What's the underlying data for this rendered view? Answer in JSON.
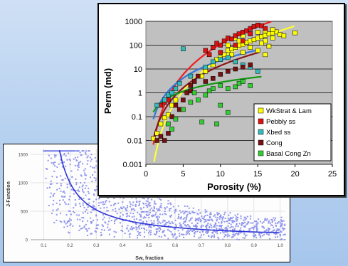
{
  "chart_data": [
    {
      "type": "scatter",
      "title": "",
      "xlabel": "Sw, fraction",
      "ylabel": "J-Function",
      "xlim": [
        0.05,
        1.02
      ],
      "ylim": [
        0,
        1600
      ],
      "xticks": [
        "0.1",
        "0.2",
        "0.3",
        "0.4",
        "0.5",
        "0.6",
        "0.7",
        "0.8",
        "0.9",
        "1.0"
      ],
      "yticks": [
        "0",
        "500",
        "1000",
        "1500"
      ],
      "point_color": "#8f95ec",
      "curve_color": "#2e35d6",
      "grid": true,
      "trend": {
        "a": 110,
        "s0": 0.09
      },
      "points": [
        [
          0.12,
          1480
        ],
        [
          0.13,
          1350
        ],
        [
          0.14,
          1200
        ],
        [
          0.15,
          1100
        ],
        [
          0.13,
          980
        ],
        [
          0.16,
          900
        ],
        [
          0.18,
          820
        ],
        [
          0.2,
          760
        ],
        [
          0.22,
          700
        ],
        [
          0.25,
          640
        ],
        [
          0.12,
          600
        ],
        [
          0.15,
          520
        ],
        [
          0.2,
          500
        ],
        [
          0.28,
          480
        ],
        [
          0.3,
          420
        ],
        [
          0.35,
          380
        ],
        [
          0.4,
          340
        ],
        [
          0.45,
          300
        ],
        [
          0.5,
          260
        ],
        [
          0.55,
          240
        ],
        [
          0.6,
          210
        ],
        [
          0.65,
          190
        ],
        [
          0.7,
          170
        ],
        [
          0.75,
          150
        ],
        [
          0.8,
          140
        ],
        [
          0.85,
          120
        ],
        [
          0.9,
          110
        ],
        [
          0.95,
          100
        ],
        [
          1.0,
          90
        ],
        [
          0.17,
          1050
        ],
        [
          0.19,
          920
        ],
        [
          0.23,
          860
        ],
        [
          0.26,
          780
        ],
        [
          0.33,
          560
        ],
        [
          0.38,
          460
        ],
        [
          0.42,
          420
        ],
        [
          0.48,
          380
        ],
        [
          0.52,
          330
        ],
        [
          0.58,
          290
        ],
        [
          0.62,
          260
        ],
        [
          0.68,
          230
        ],
        [
          0.72,
          200
        ],
        [
          0.78,
          180
        ],
        [
          0.82,
          160
        ],
        [
          0.88,
          150
        ],
        [
          0.92,
          130
        ],
        [
          0.98,
          120
        ],
        [
          0.14,
          300
        ],
        [
          0.2,
          250
        ],
        [
          0.3,
          200
        ],
        [
          0.4,
          150
        ],
        [
          0.5,
          120
        ],
        [
          0.6,
          100
        ],
        [
          0.7,
          80
        ],
        [
          0.8,
          60
        ],
        [
          0.9,
          50
        ],
        [
          0.11,
          1250
        ],
        [
          0.24,
          1000
        ],
        [
          0.27,
          900
        ],
        [
          0.31,
          720
        ]
      ]
    },
    {
      "type": "scatter",
      "title": "",
      "xlabel": "Porosity (%)",
      "ylabel": "Perm (md)",
      "xlim": [
        0,
        25
      ],
      "ylim": [
        0.001,
        1000
      ],
      "yscale": "log",
      "xticks": [
        "0",
        "5",
        "10",
        "15",
        "20",
        "25"
      ],
      "yticks": [
        "0.001",
        "0.01",
        "0.1",
        "1",
        "10",
        "100",
        "1000"
      ],
      "plot_background": "#c0c0c0",
      "grid": true,
      "legend_position": "bottom-right",
      "series": [
        {
          "name": "WkStrat & Lam",
          "color": "#ffff00",
          "curve_color": "#ffff33",
          "trend": {
            "a": 0.00082,
            "b": 4.53
          },
          "points": [
            [
              1,
              0.012
            ],
            [
              1.5,
              0.02
            ],
            [
              2,
              0.05
            ],
            [
              2.5,
              0.09
            ],
            [
              3,
              0.12
            ],
            [
              3.5,
              0.3
            ],
            [
              4,
              0.5
            ],
            [
              7.5,
              5
            ],
            [
              8,
              8
            ],
            [
              9,
              15
            ],
            [
              9.5,
              25
            ],
            [
              10,
              30
            ],
            [
              10.5,
              40
            ],
            [
              11,
              60
            ],
            [
              11.5,
              70
            ],
            [
              12,
              80
            ],
            [
              12.5,
              100
            ],
            [
              13,
              110
            ],
            [
              13.5,
              130
            ],
            [
              14,
              150
            ],
            [
              14.5,
              170
            ],
            [
              15,
              200
            ],
            [
              15.5,
              230
            ],
            [
              16,
              260
            ],
            [
              16.5,
              300
            ],
            [
              17,
              330
            ],
            [
              17.5,
              360
            ],
            [
              18,
              280
            ],
            [
              20,
              330
            ],
            [
              12,
              200
            ],
            [
              13,
              250
            ],
            [
              14,
              300
            ],
            [
              15,
              350
            ],
            [
              16,
              400
            ],
            [
              17,
              450
            ],
            [
              11,
              100
            ],
            [
              12.5,
              150
            ],
            [
              16,
              150
            ],
            [
              17,
              200
            ],
            [
              18.5,
              250
            ],
            [
              14,
              80
            ],
            [
              15.5,
              120
            ],
            [
              16.5,
              90
            ],
            [
              11.5,
              40
            ],
            [
              13,
              50
            ],
            [
              15,
              60
            ],
            [
              16,
              40
            ]
          ]
        },
        {
          "name": "Pebbly ss",
          "color": "#dd1111",
          "curve_color": "#ee2020",
          "trend": {
            "a": 0.0066,
            "b": 4.22
          },
          "points": [
            [
              2,
              0.3
            ],
            [
              2.5,
              0.4
            ],
            [
              3,
              0.5
            ],
            [
              8,
              60
            ],
            [
              9,
              80
            ],
            [
              10,
              100
            ],
            [
              10.5,
              150
            ],
            [
              11,
              200
            ],
            [
              12,
              250
            ],
            [
              12.5,
              300
            ],
            [
              13,
              350
            ],
            [
              13.5,
              400
            ],
            [
              14,
              500
            ],
            [
              14.5,
              600
            ],
            [
              15,
              700
            ],
            [
              15.5,
              650
            ],
            [
              9.5,
              120
            ],
            [
              11.5,
              180
            ],
            [
              13,
              150
            ],
            [
              14,
              300
            ],
            [
              16,
              500
            ],
            [
              8.5,
              40
            ],
            [
              10,
              50
            ],
            [
              12,
              100
            ]
          ]
        },
        {
          "name": "Xbed ss",
          "color": "#33bbbb",
          "curve_color": "#3377dd",
          "trend": {
            "a": 0.078,
            "b": 2.47
          },
          "points": [
            [
              1.5,
              0.3
            ],
            [
              2.5,
              0.5
            ],
            [
              3,
              0.8
            ],
            [
              4,
              1.5
            ],
            [
              4.5,
              2.5
            ],
            [
              5,
              70
            ],
            [
              8,
              12
            ],
            [
              9,
              20
            ],
            [
              10,
              25
            ],
            [
              11,
              30
            ],
            [
              12,
              20
            ],
            [
              13,
              15
            ],
            [
              14,
              12
            ],
            [
              15,
              8
            ],
            [
              3.5,
              1
            ],
            [
              6,
              5
            ]
          ]
        },
        {
          "name": "Cong",
          "color": "#771111",
          "curve_color": "#881818",
          "trend": {
            "a": 0.0112,
            "b": 3.09
          },
          "points": [
            [
              1.5,
              0.01
            ],
            [
              2,
              0.015
            ],
            [
              2.5,
              0.01
            ],
            [
              3,
              0.02
            ],
            [
              3.5,
              0.1
            ],
            [
              4,
              0.3
            ],
            [
              5,
              0.5
            ],
            [
              5.5,
              1
            ],
            [
              6,
              2
            ],
            [
              6.5,
              3
            ],
            [
              7,
              5
            ],
            [
              8,
              3
            ],
            [
              9,
              4
            ],
            [
              10,
              6
            ],
            [
              11,
              8
            ],
            [
              12,
              10
            ],
            [
              13,
              12
            ],
            [
              14,
              15
            ],
            [
              4.5,
              0.2
            ],
            [
              6,
              1.2
            ]
          ]
        },
        {
          "name": "Basal Cong Zn",
          "color": "#33cc33",
          "curve_color": "#119911",
          "trend": {
            "a": 0.155,
            "b": 1.25
          },
          "points": [
            [
              3,
              0.05
            ],
            [
              3.5,
              0.03
            ],
            [
              4,
              0.08
            ],
            [
              5,
              0.2
            ],
            [
              6,
              0.4
            ],
            [
              7,
              0.5
            ],
            [
              7.5,
              0.06
            ],
            [
              8,
              0.8
            ],
            [
              8.5,
              1.2
            ],
            [
              9,
              1.5
            ],
            [
              10,
              2
            ],
            [
              11,
              1.5
            ],
            [
              12,
              1.8
            ],
            [
              12.5,
              2.5
            ],
            [
              13,
              3
            ],
            [
              10,
              0.3
            ],
            [
              11,
              0.15
            ],
            [
              9.5,
              0.05
            ],
            [
              6.5,
              1
            ],
            [
              14,
              2
            ]
          ]
        }
      ]
    }
  ]
}
